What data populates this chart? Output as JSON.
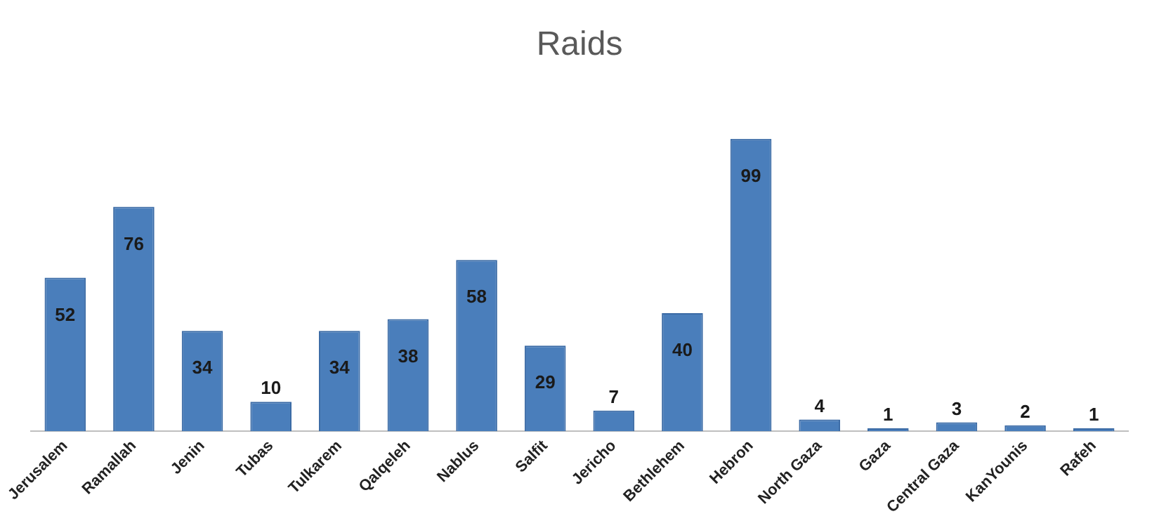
{
  "chart_data": {
    "type": "bar",
    "title": "Raids",
    "categories": [
      "Jerusalem",
      "Ramallah",
      "Jenin",
      "Tubas",
      "Tulkarem",
      "Qalqeleh",
      "Nablus",
      "Salfit",
      "Jericho",
      "Bethlehem",
      "Hebron",
      "North Gaza",
      "Gaza",
      "Central Gaza",
      "KanYounis",
      "Rafeh"
    ],
    "values": [
      52,
      76,
      34,
      10,
      34,
      38,
      58,
      29,
      7,
      40,
      99,
      4,
      1,
      3,
      2,
      1
    ],
    "color": "#4a7ebb",
    "data_labels": true,
    "grid": false,
    "legend": false
  }
}
